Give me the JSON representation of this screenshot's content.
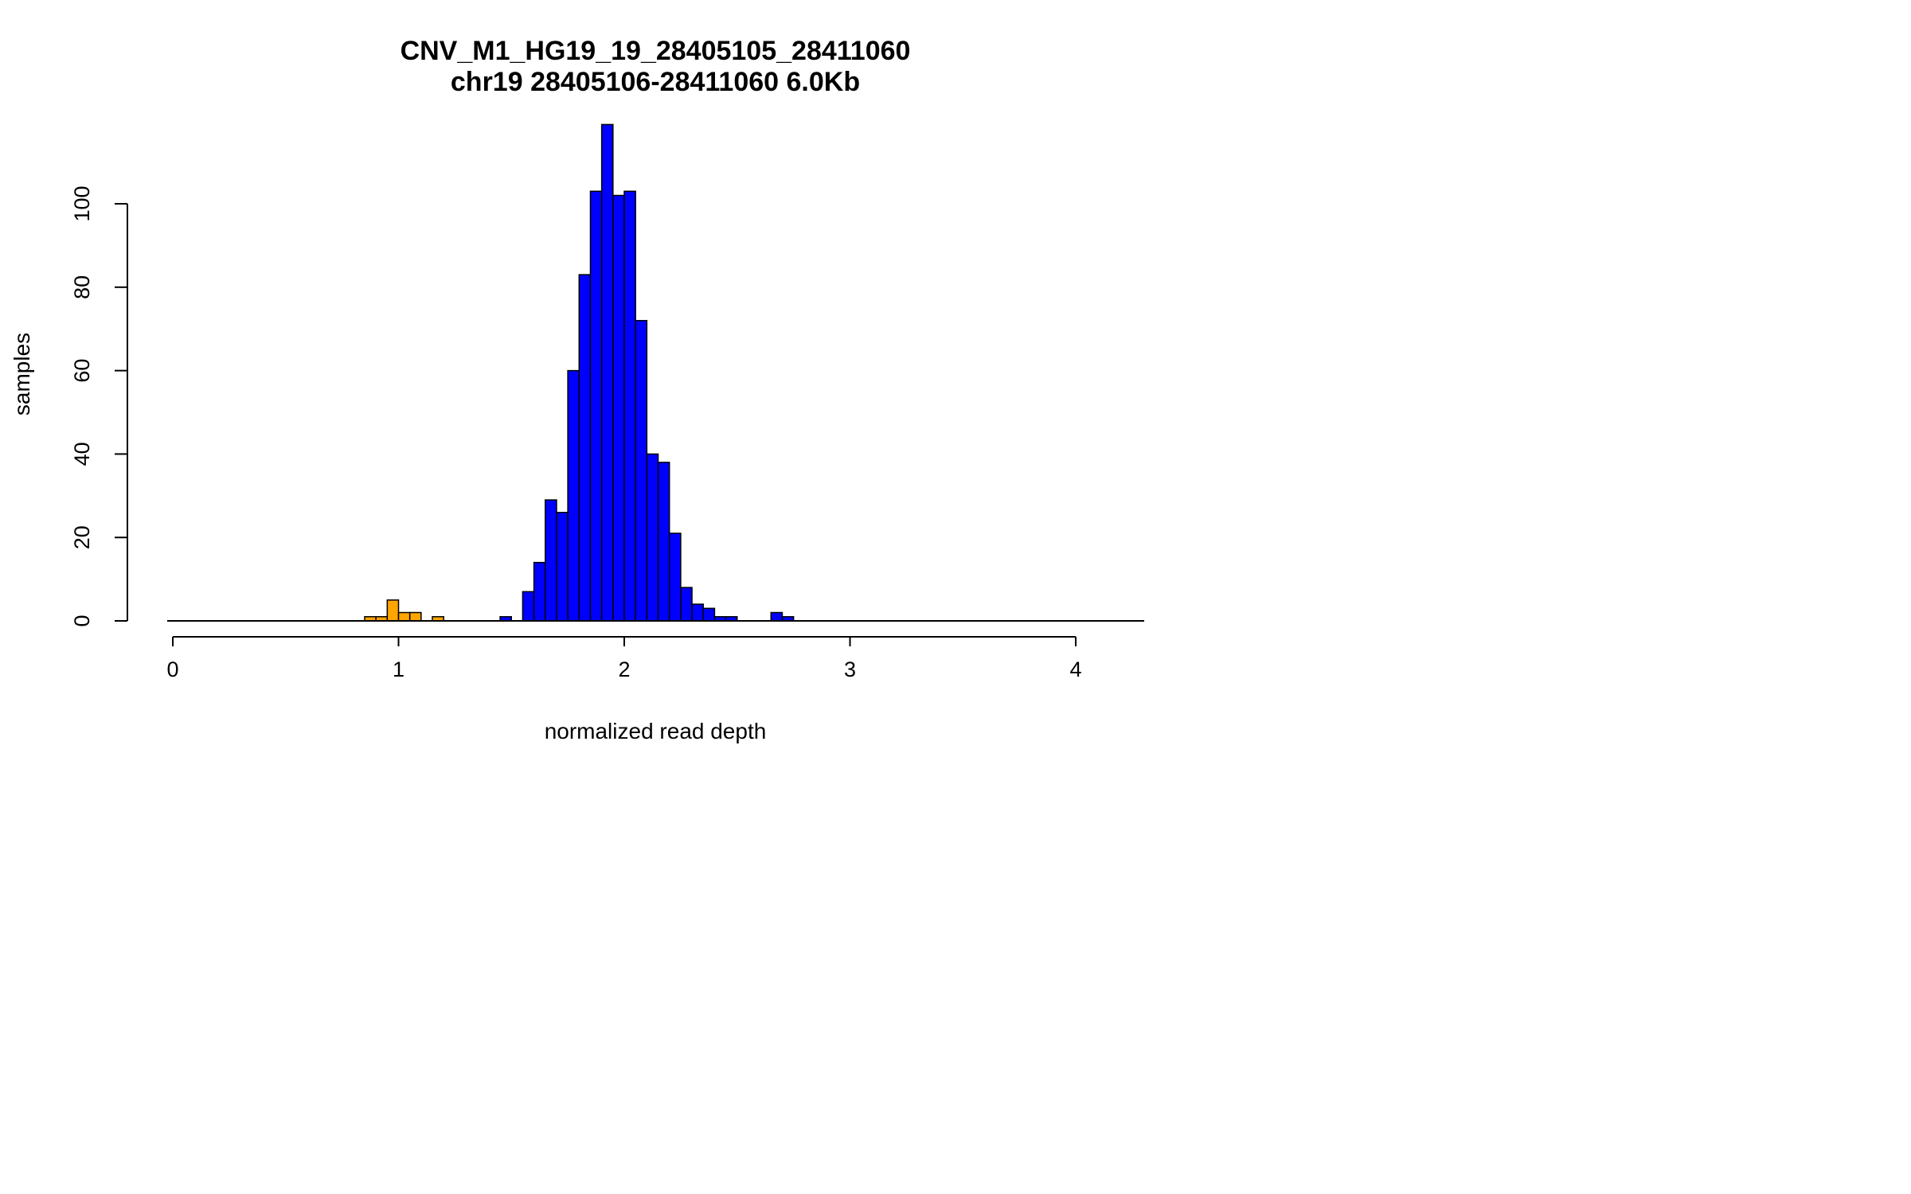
{
  "chart_data": {
    "type": "bar",
    "title": "CNV_M1_HG19_19_28405105_28411060",
    "subtitle": "chr19 28405106-28411060 6.0Kb",
    "xlabel": "normalized read depth",
    "ylabel": "samples",
    "xlim": [
      0,
      4.3
    ],
    "ylim": [
      0,
      120
    ],
    "x_ticks": [
      "0",
      "1",
      "2",
      "3",
      "4"
    ],
    "y_ticks": [
      "0",
      "20",
      "40",
      "60",
      "80",
      "100"
    ],
    "bin_width": 0.05,
    "grid": false,
    "legend": "none",
    "colors": {
      "low": "#FFA500",
      "normal": "#0000FF",
      "outline": "#000000"
    },
    "series": [
      {
        "color_key": "low",
        "bins": [
          {
            "x0": 0.85,
            "count": 1
          },
          {
            "x0": 0.9,
            "count": 1
          },
          {
            "x0": 0.95,
            "count": 5
          },
          {
            "x0": 1.0,
            "count": 2
          },
          {
            "x0": 1.05,
            "count": 2
          },
          {
            "x0": 1.15,
            "count": 1
          }
        ]
      },
      {
        "color_key": "normal",
        "bins": [
          {
            "x0": 1.45,
            "count": 1
          },
          {
            "x0": 1.55,
            "count": 7
          },
          {
            "x0": 1.6,
            "count": 14
          },
          {
            "x0": 1.65,
            "count": 29
          },
          {
            "x0": 1.7,
            "count": 26
          },
          {
            "x0": 1.75,
            "count": 60
          },
          {
            "x0": 1.8,
            "count": 83
          },
          {
            "x0": 1.85,
            "count": 103
          },
          {
            "x0": 1.9,
            "count": 119
          },
          {
            "x0": 1.95,
            "count": 102
          },
          {
            "x0": 2.0,
            "count": 103
          },
          {
            "x0": 2.05,
            "count": 72
          },
          {
            "x0": 2.1,
            "count": 40
          },
          {
            "x0": 2.15,
            "count": 38
          },
          {
            "x0": 2.2,
            "count": 21
          },
          {
            "x0": 2.25,
            "count": 8
          },
          {
            "x0": 2.3,
            "count": 4
          },
          {
            "x0": 2.35,
            "count": 3
          },
          {
            "x0": 2.4,
            "count": 1
          },
          {
            "x0": 2.45,
            "count": 1
          },
          {
            "x0": 2.65,
            "count": 2
          },
          {
            "x0": 2.7,
            "count": 1
          }
        ]
      }
    ]
  }
}
